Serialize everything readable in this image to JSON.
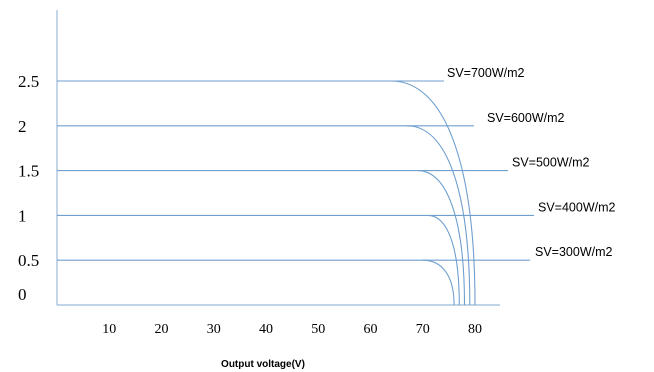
{
  "chart_data": {
    "type": "line",
    "title": "",
    "xlabel": "Output voltage(V)",
    "ylabel": "",
    "xlim": [
      0,
      80
    ],
    "ylim": [
      0,
      2.5
    ],
    "x_ticks": [
      "10",
      "20",
      "30",
      "40",
      "50",
      "60",
      "70",
      "80"
    ],
    "y_ticks": [
      "0",
      "0.5",
      "1",
      "1.5",
      "2",
      "2.5"
    ],
    "grid": false,
    "legend": "none (labels at line ends)",
    "series": [
      {
        "name": "SV=300W/m2",
        "current": 0.5,
        "knee_voltage": 70,
        "open_circuit_voltage": 76
      },
      {
        "name": "SV=400W/m2",
        "current": 1.0,
        "knee_voltage": 71,
        "open_circuit_voltage": 77
      },
      {
        "name": "SV=500W/m2",
        "current": 1.5,
        "knee_voltage": 69,
        "open_circuit_voltage": 78
      },
      {
        "name": "SV=600W/m2",
        "current": 2.0,
        "knee_voltage": 67,
        "open_circuit_voltage": 79
      },
      {
        "name": "SV=700W/m2",
        "current": 2.5,
        "knee_voltage": 64,
        "open_circuit_voltage": 80
      }
    ]
  }
}
